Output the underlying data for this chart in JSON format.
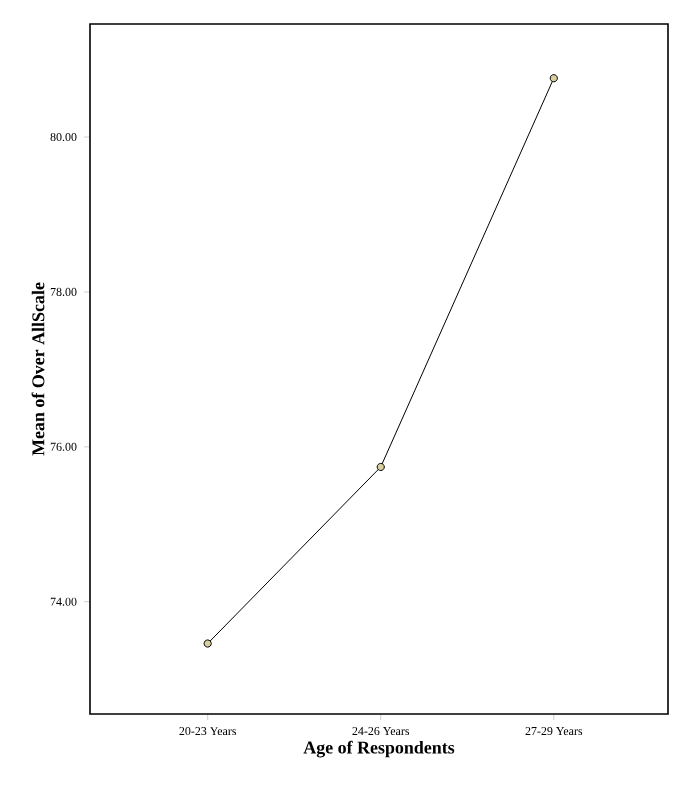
{
  "chart_data": {
    "type": "line",
    "xlabel": "Age of Respondents",
    "ylabel": "Mean of Over AllScale",
    "categories": [
      "20-23 Years",
      "24-26 Years",
      "27-29 Years"
    ],
    "series": [
      {
        "color": "#000000",
        "values": [
          73.46,
          75.74,
          80.76
        ]
      }
    ],
    "ylim": [
      72.55,
      81.46
    ],
    "yticks": [
      {
        "value": 74,
        "label": "74.00"
      },
      {
        "value": 76,
        "label": "76.00"
      },
      {
        "value": 78,
        "label": "78.00"
      },
      {
        "value": 80,
        "label": "80.00"
      }
    ],
    "grid": false,
    "marker": "circle",
    "line_style": "solid"
  }
}
